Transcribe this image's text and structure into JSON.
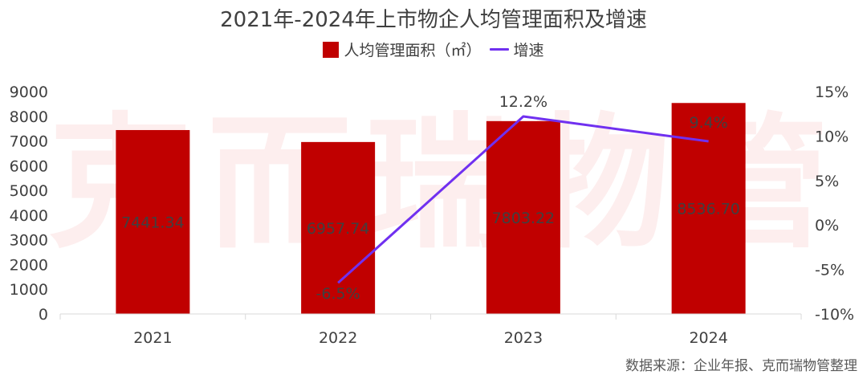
{
  "header": {
    "title": "2021年-2024年上市物企人均管理面积及增速"
  },
  "legend": {
    "items": [
      {
        "label": "人均管理面积（㎡）",
        "type": "bar",
        "color": "#c00000"
      },
      {
        "label": "增速",
        "type": "line",
        "color": "#7030f0"
      }
    ]
  },
  "watermark": "克而瑞物管",
  "source": "数据来源：企业年报、克而瑞物管整理",
  "chart_data": {
    "type": "bar",
    "title": "2021年-2024年上市物企人均管理面积及增速",
    "categories": [
      "2021",
      "2022",
      "2023",
      "2024"
    ],
    "series": [
      {
        "name": "人均管理面积（㎡）",
        "type": "bar",
        "axis": "left",
        "color": "#c00000",
        "values": [
          7441.34,
          6957.74,
          7803.22,
          8536.7
        ],
        "labels": [
          "7441.34",
          "6957.74",
          "7803.22",
          "8536.70"
        ]
      },
      {
        "name": "增速",
        "type": "line",
        "axis": "right",
        "color": "#7030f0",
        "values": [
          null,
          -6.5,
          12.2,
          9.4
        ],
        "labels": [
          "",
          "-6.5%",
          "12.2%",
          "9.4%"
        ]
      }
    ],
    "y_left": {
      "min": 0,
      "max": 9000,
      "step": 1000,
      "ticks": [
        "0",
        "1000",
        "2000",
        "3000",
        "4000",
        "5000",
        "6000",
        "7000",
        "8000",
        "9000"
      ]
    },
    "y_right": {
      "min": -10,
      "max": 15,
      "step": 5,
      "ticks": [
        "-10%",
        "-5%",
        "0%",
        "5%",
        "10%",
        "15%"
      ]
    },
    "xlabel": "",
    "ylabel": "",
    "grid": false,
    "legend_position": "top"
  }
}
